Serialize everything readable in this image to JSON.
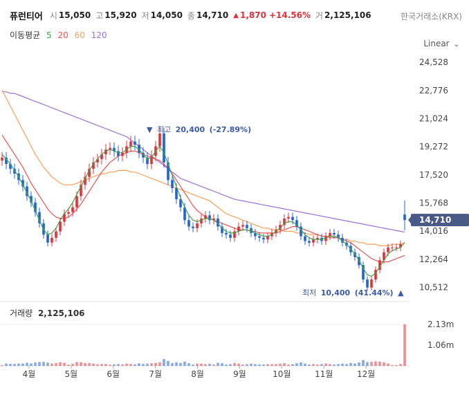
{
  "header": {
    "name": "퓨런티어",
    "open_label": "시",
    "open": "15,050",
    "high_label": "고",
    "high": "15,920",
    "low_label": "저",
    "low": "14,050",
    "close_label": "종",
    "close": "14,710",
    "change_symbol": "▲",
    "change": "1,870",
    "change_pct": "+14.56%",
    "volume_label": "거",
    "volume": "2,125,106",
    "exchange": "한국거래소(KRX)"
  },
  "ma_legend": {
    "label": "이동평균",
    "periods": [
      "5",
      "20",
      "60",
      "120"
    ]
  },
  "scale_toggle": {
    "label": "Linear"
  },
  "colors": {
    "up": "#e0313b",
    "down": "#1f63d8",
    "ma5": "#43a047",
    "ma20": "#ef5350",
    "ma60": "#ff9e57",
    "ma120": "#9c6ee0",
    "price_tag": "#4a5a86"
  },
  "chart_data": {
    "type": "candlestick",
    "price_axis": {
      "ticks": [
        "24,528",
        "22,776",
        "21,024",
        "19,272",
        "17,520",
        "15,768",
        "14,016",
        "12,264",
        "10,512"
      ],
      "range": [
        9800,
        25400
      ]
    },
    "months": [
      "4월",
      "5월",
      "6월",
      "7월",
      "8월",
      "9월",
      "10월",
      "11월",
      "12월"
    ],
    "current_price": "14,710",
    "high_annotation": {
      "marker": "▼",
      "label": "최고",
      "value": "20,400",
      "pct": "(-27.89%)"
    },
    "low_annotation": {
      "label": "최저",
      "value": "10,400",
      "pct": "(41.44%)",
      "marker": "▲"
    },
    "last_candle": {
      "open": 15050,
      "high": 15920,
      "low": 14050,
      "close": 14710
    },
    "close_series": [
      18600,
      18200,
      17900,
      17600,
      17200,
      16800,
      16200,
      15800,
      15200,
      14500,
      13800,
      13300,
      13600,
      14000,
      14600,
      15100,
      15200,
      15500,
      16200,
      16900,
      17400,
      17900,
      18300,
      18500,
      18800,
      19100,
      19200,
      19000,
      18700,
      18900,
      19300,
      19600,
      19400,
      18900,
      18600,
      18200,
      18700,
      19300,
      20100,
      18300,
      17200,
      16700,
      16000,
      15500,
      14700,
      14300,
      14200,
      14500,
      14800,
      15000,
      14700,
      14800,
      14300,
      13900,
      13800,
      13600,
      14000,
      14300,
      14400,
      14200,
      13900,
      13700,
      13600,
      13500,
      13700,
      13900,
      14100,
      14400,
      14800,
      14900,
      14700,
      14300,
      13700,
      13400,
      13300,
      13500,
      13600,
      13400,
      13700,
      13900,
      13800,
      13600,
      13300,
      13100,
      12700,
      12400,
      11900,
      11000,
      10500,
      11000,
      11600,
      12200,
      12700,
      13000,
      13000,
      13000,
      13200,
      14710
    ],
    "ma5": [
      18800,
      18500,
      18200,
      17800,
      17400,
      16900,
      16400,
      15900,
      15300,
      14700,
      14100,
      13800,
      13900,
      14200,
      14700,
      15100,
      15400,
      15800,
      16300,
      16800,
      17300,
      17800,
      18200,
      18500,
      18800,
      19000,
      19100,
      19000,
      18900,
      18900,
      19100,
      19300,
      19300,
      19100,
      18800,
      18500,
      18600,
      19000,
      19300,
      18900,
      18200,
      17500,
      16800,
      16100,
      15500,
      15000,
      14700,
      14600,
      14700,
      14800,
      14800,
      14700,
      14500,
      14200,
      14000,
      13900,
      13900,
      14000,
      14100,
      14100,
      14000,
      13900,
      13800,
      13700,
      13700,
      13800,
      14000,
      14200,
      14500,
      14600,
      14600,
      14400,
      14100,
      13800,
      13600,
      13500,
      13500,
      13500,
      13600,
      13700,
      13700,
      13600,
      13400,
      13200,
      12900,
      12600,
      12200,
      11700,
      11300,
      11200,
      11400,
      11800,
      12200,
      12600,
      12800,
      12900,
      13000,
      13300
    ],
    "ma20": [
      20000,
      19600,
      19200,
      18800,
      18400,
      18000,
      17500,
      17000,
      16600,
      16200,
      15800,
      15400,
      15100,
      14900,
      14800,
      14800,
      14900,
      15100,
      15400,
      15700,
      16100,
      16500,
      16900,
      17300,
      17700,
      18000,
      18300,
      18500,
      18700,
      18800,
      18900,
      19000,
      19000,
      18900,
      18800,
      18700,
      18600,
      18500,
      18400,
      18200,
      17900,
      17600,
      17200,
      16800,
      16400,
      16000,
      15600,
      15300,
      15100,
      14900,
      14800,
      14700,
      14600,
      14500,
      14400,
      14300,
      14200,
      14100,
      14100,
      14100,
      14000,
      14000,
      13900,
      13900,
      13900,
      13900,
      13900,
      14000,
      14100,
      14200,
      14300,
      14300,
      14200,
      14100,
      14000,
      13900,
      13800,
      13700,
      13700,
      13600,
      13600,
      13600,
      13500,
      13400,
      13300,
      13100,
      12900,
      12700,
      12500,
      12300,
      12200,
      12100,
      12100,
      12100,
      12200,
      12300,
      12400,
      12500
    ],
    "ma60": [
      22800,
      22300,
      21800,
      21300,
      20800,
      20300,
      19800,
      19300,
      18800,
      18400,
      18000,
      17700,
      17400,
      17200,
      17000,
      16900,
      16900,
      16900,
      17000,
      17100,
      17200,
      17300,
      17400,
      17500,
      17600,
      17600,
      17700,
      17700,
      17800,
      17800,
      17800,
      17700,
      17700,
      17600,
      17500,
      17400,
      17300,
      17200,
      17100,
      17000,
      16900,
      16800,
      16700,
      16600,
      16500,
      16400,
      16300,
      16200,
      16100,
      16000,
      15900,
      15700,
      15500,
      15300,
      15100,
      15000,
      14900,
      14800,
      14700,
      14600,
      14500,
      14400,
      14300,
      14200,
      14200,
      14100,
      14100,
      14100,
      14000,
      14000,
      14000,
      13900,
      13900,
      13900,
      13800,
      13800,
      13800,
      13700,
      13700,
      13700,
      13600,
      13600,
      13500,
      13500,
      13400,
      13400,
      13300,
      13300,
      13200,
      13200,
      13200,
      13100,
      13100,
      13100,
      13200,
      13200,
      13200,
      13300
    ],
    "ma120": [
      22700,
      22700,
      22600,
      22600,
      22500,
      22400,
      22300,
      22200,
      22100,
      22000,
      21900,
      21800,
      21700,
      21600,
      21500,
      21400,
      21300,
      21200,
      21100,
      21000,
      20900,
      20800,
      20700,
      20600,
      20500,
      20400,
      20300,
      20200,
      20100,
      20000,
      19900,
      19700,
      19500,
      19300,
      19100,
      18900,
      18700,
      18500,
      18300,
      18100,
      17900,
      17700,
      17500,
      17300,
      17200,
      17100,
      17000,
      16900,
      16800,
      16700,
      16600,
      16500,
      16400,
      16300,
      16200,
      16100,
      16000,
      15950,
      15900,
      15850,
      15800,
      15750,
      15700,
      15650,
      15600,
      15550,
      15500,
      15450,
      15400,
      15350,
      15300,
      15250,
      15200,
      15150,
      15100,
      15050,
      15000,
      14950,
      14900,
      14850,
      14800,
      14750,
      14700,
      14650,
      14600,
      14550,
      14500,
      14450,
      14400,
      14350,
      14300,
      14250,
      14200,
      14150,
      14100,
      14050,
      14000,
      13950
    ],
    "volume": {
      "title": "거래량",
      "value": "2,125,106",
      "ticks": [
        "2.13m",
        "1.06m"
      ],
      "max": 2125106
    }
  }
}
